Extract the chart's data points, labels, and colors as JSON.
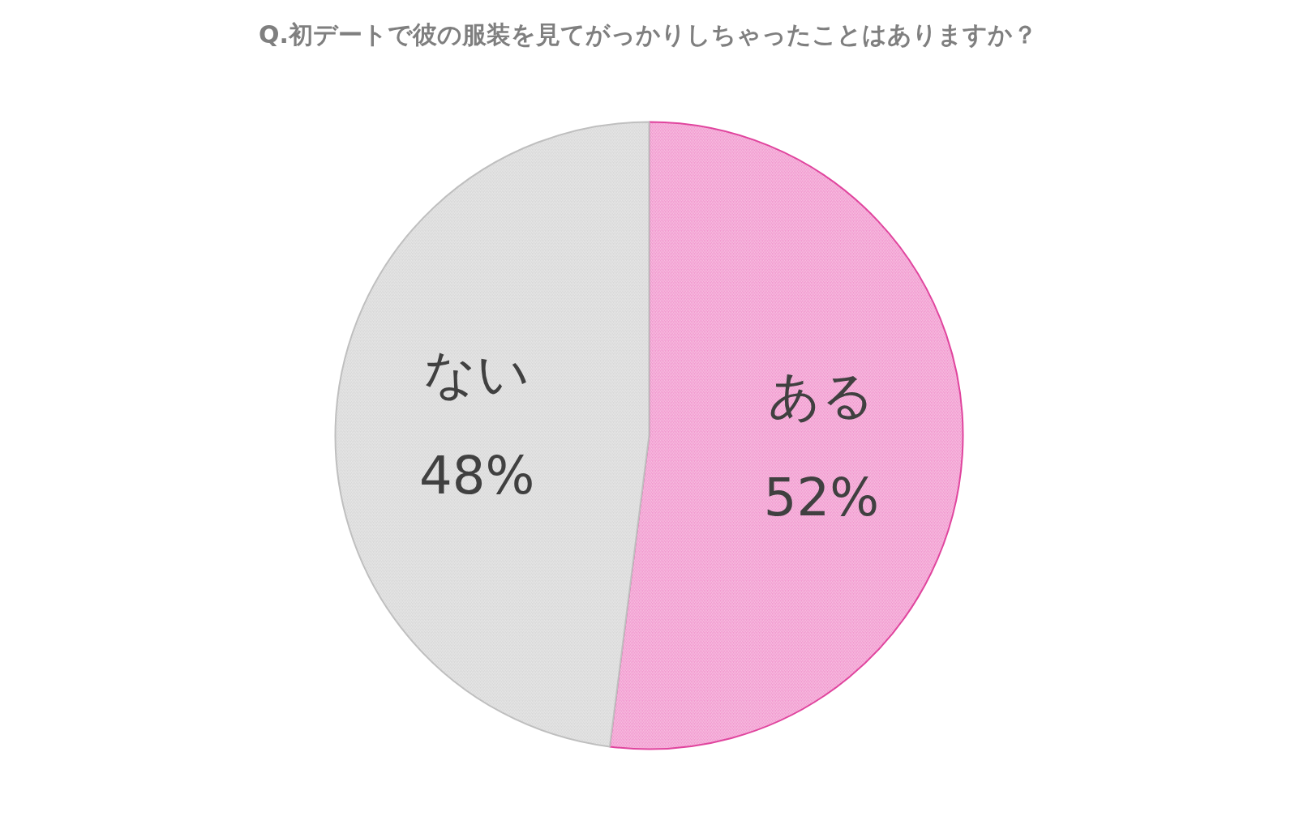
{
  "chart_data": {
    "type": "pie",
    "title": "Q.初デートで彼の服装を見てがっかりしちゃったことはありますか？",
    "categories": [
      "ある",
      "ない"
    ],
    "values": [
      52,
      48
    ],
    "value_labels": [
      "52%",
      "48%"
    ],
    "colors": [
      "#f29bd0",
      "#d9d9d9"
    ]
  }
}
